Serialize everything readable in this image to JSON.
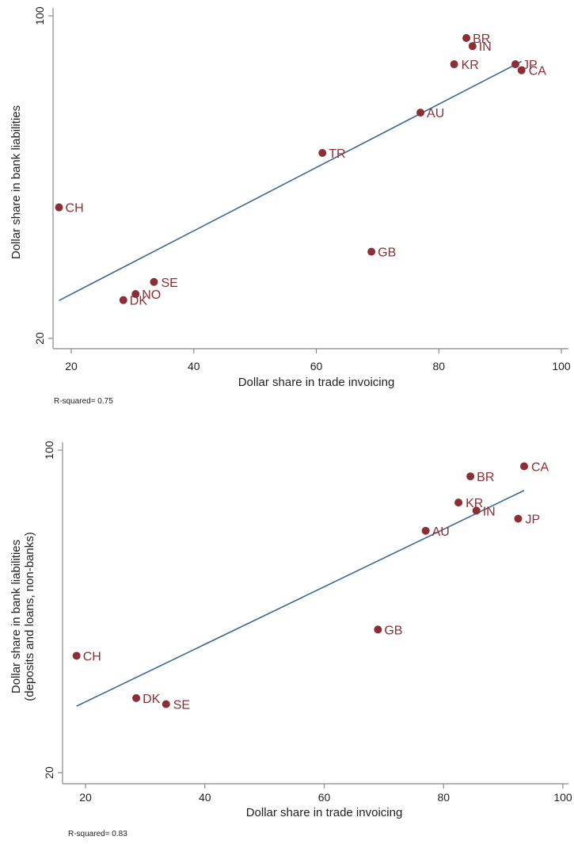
{
  "colors": {
    "point": "#8b2f36",
    "fit_line": "#3b6893",
    "axis": "#888888"
  },
  "chart_data": [
    {
      "type": "scatter",
      "title": "",
      "xlabel": "Dollar share in trade invoicing",
      "ylabel": "Dollar share in bank liabilities",
      "ylabel2": "",
      "xlim": [
        16,
        101
      ],
      "ylim": [
        20,
        100
      ],
      "xticks": [
        "20",
        "40",
        "60",
        "80",
        "100"
      ],
      "yticks": [
        "20",
        "100"
      ],
      "note": "R-squared= 0.75",
      "fit_line": {
        "x": [
          18,
          93.5
        ],
        "y": [
          29.4,
          88.7
        ]
      },
      "points": [
        {
          "label": "BR",
          "x": 84.5,
          "y": 94.5
        },
        {
          "label": "IN",
          "x": 85.5,
          "y": 92.5
        },
        {
          "label": "KR",
          "x": 82.5,
          "y": 88
        },
        {
          "label": "JP",
          "x": 92.5,
          "y": 88
        },
        {
          "label": "CA",
          "x": 93.5,
          "y": 86.5
        },
        {
          "label": "AU",
          "x": 77,
          "y": 76
        },
        {
          "label": "TR",
          "x": 61,
          "y": 66
        },
        {
          "label": "CH",
          "x": 18,
          "y": 52.5
        },
        {
          "label": "GB",
          "x": 69,
          "y": 41.5
        },
        {
          "label": "SE",
          "x": 33.5,
          "y": 34
        },
        {
          "label": "NO",
          "x": 30.5,
          "y": 31
        },
        {
          "label": "DK",
          "x": 28.5,
          "y": 29.5
        }
      ]
    },
    {
      "type": "scatter",
      "title": "",
      "xlabel": "Dollar share in trade invoicing",
      "ylabel": "Dollar share in bank liabilities",
      "ylabel2": "(deposits and loans, non-banks)",
      "xlim": [
        16,
        101
      ],
      "ylim": [
        20,
        100
      ],
      "xticks": [
        "20",
        "40",
        "60",
        "80",
        "100"
      ],
      "yticks": [
        "20",
        "100"
      ],
      "note": "R-squared= 0.83",
      "fit_line": {
        "x": [
          18.5,
          93.5
        ],
        "y": [
          36.5,
          90
        ]
      },
      "points": [
        {
          "label": "CA",
          "x": 93.5,
          "y": 96
        },
        {
          "label": "BR",
          "x": 84.5,
          "y": 93.5
        },
        {
          "label": "KR",
          "x": 82.5,
          "y": 87
        },
        {
          "label": "IN",
          "x": 85.5,
          "y": 85
        },
        {
          "label": "JP",
          "x": 92.5,
          "y": 83
        },
        {
          "label": "AU",
          "x": 77,
          "y": 80
        },
        {
          "label": "GB",
          "x": 69,
          "y": 55.5
        },
        {
          "label": "CH",
          "x": 18.5,
          "y": 49
        },
        {
          "label": "DK",
          "x": 28.5,
          "y": 38.5
        },
        {
          "label": "SE",
          "x": 33.5,
          "y": 37
        }
      ]
    }
  ]
}
